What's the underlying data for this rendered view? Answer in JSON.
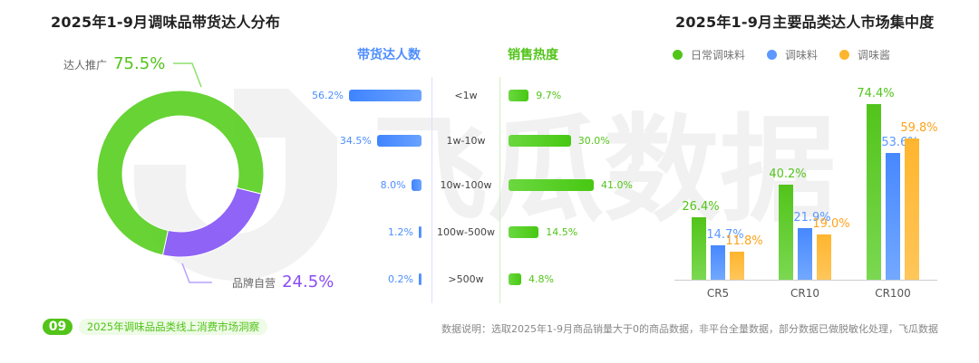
{
  "left_panel": {
    "title": "2025年1-9月调味品带货达人分布",
    "donut": {
      "segments": [
        {
          "label": "达人推广",
          "value_text": "75.5%",
          "value": 75.5,
          "color": "#5fd12a"
        },
        {
          "label": "品牌自营",
          "value_text": "24.5%",
          "value": 24.5,
          "color": "#8a5cf6"
        }
      ]
    }
  },
  "middle_panel": {
    "blue_header": "带货达人数",
    "green_header": "销售热度",
    "rows": [
      {
        "range": "<1w",
        "creators_text": "56.2%",
        "creators": 56.2,
        "sales_text": "9.7%",
        "sales": 9.7
      },
      {
        "range": "1w-10w",
        "creators_text": "34.5%",
        "creators": 34.5,
        "sales_text": "30.0%",
        "sales": 30.0
      },
      {
        "range": "10w-100w",
        "creators_text": "8.0%",
        "creators": 8.0,
        "sales_text": "41.0%",
        "sales": 41.0
      },
      {
        "range": "100w-500w",
        "creators_text": "1.2%",
        "creators": 1.2,
        "sales_text": "14.5%",
        "sales": 14.5
      },
      {
        "range": ">500w",
        "creators_text": "0.2%",
        "creators": 0.2,
        "sales_text": "4.8%",
        "sales": 4.8
      }
    ],
    "colors": {
      "blue": "#4d8dff",
      "green": "#52c41a"
    }
  },
  "right_panel": {
    "title": "2025年1-9月主要品类达人市场集中度",
    "legend": [
      {
        "label": "日常调味料",
        "color": "#52c41a"
      },
      {
        "label": "调味料",
        "color": "#5b98ff"
      },
      {
        "label": "调味酱",
        "color": "#ffb52e"
      }
    ],
    "groups": [
      {
        "label": "CR5",
        "values": [
          26.4,
          14.7,
          11.8
        ],
        "texts": [
          "26.4%",
          "14.7%",
          "11.8%"
        ]
      },
      {
        "label": "CR10",
        "values": [
          40.2,
          21.9,
          19.0
        ],
        "texts": [
          "40.2%",
          "21.9%",
          "19.0%"
        ]
      },
      {
        "label": "CR100",
        "values": [
          74.4,
          53.6,
          59.8
        ],
        "texts": [
          "74.4%",
          "53.6%",
          "59.8%"
        ]
      }
    ]
  },
  "watermark": {
    "text": "飞瓜数据"
  },
  "footer": {
    "page_number": "09",
    "report_title": "2025年调味品品类线上消费市场洞察",
    "note": "数据说明：选取2025年1-9月商品销量大于0的商品数据，非平台全量数据，部分数据已做脱敏化处理，飞瓜数据"
  },
  "chart_data": [
    {
      "type": "pie",
      "title": "2025年1-9月调味品带货达人分布",
      "categories": [
        "达人推广",
        "品牌自营"
      ],
      "values": [
        75.5,
        24.5
      ],
      "unit": "%",
      "donut": true
    },
    {
      "type": "bar",
      "orientation": "horizontal",
      "title": "带货达人数 / 销售热度",
      "categories": [
        "<1w",
        "1w-10w",
        "10w-100w",
        "100w-500w",
        ">500w"
      ],
      "series": [
        {
          "name": "带货达人数",
          "values": [
            56.2,
            34.5,
            8.0,
            1.2,
            0.2
          ]
        },
        {
          "name": "销售热度",
          "values": [
            9.7,
            30.0,
            41.0,
            14.5,
            4.8
          ]
        }
      ],
      "unit": "%"
    },
    {
      "type": "bar",
      "title": "2025年1-9月主要品类达人市场集中度",
      "categories": [
        "CR5",
        "CR10",
        "CR100"
      ],
      "series": [
        {
          "name": "日常调味料",
          "values": [
            26.4,
            40.2,
            74.4
          ]
        },
        {
          "name": "调味料",
          "values": [
            14.7,
            21.9,
            53.6
          ]
        },
        {
          "name": "调味酱",
          "values": [
            11.8,
            19.0,
            59.8
          ]
        }
      ],
      "xlabel": "",
      "ylabel": "",
      "unit": "%",
      "ylim": [
        0,
        80
      ],
      "grid": false,
      "legend_position": "top-left"
    }
  ]
}
